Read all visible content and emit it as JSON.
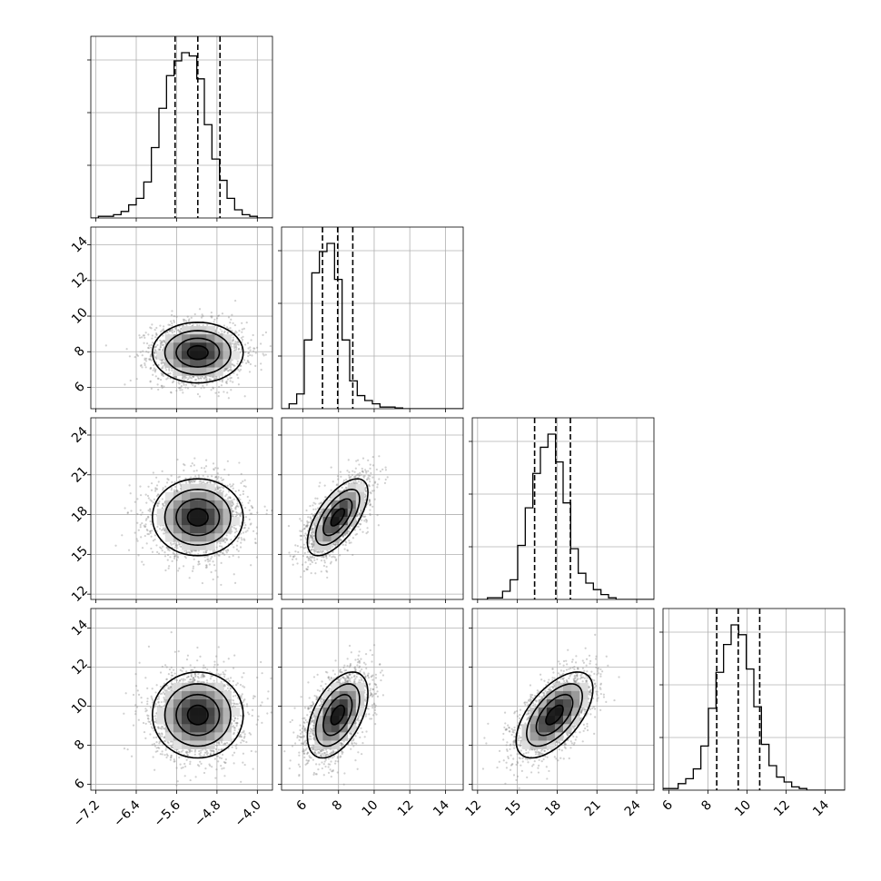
{
  "chart_data": {
    "type": "corner",
    "grid": true,
    "parameters": [
      {
        "range": [
          -7.3,
          -3.7
        ],
        "ticks": [
          -7.2,
          -6.4,
          -5.6,
          -4.8,
          -4.0
        ],
        "tick_labels": [
          "−7.2",
          "−6.4",
          "−5.6",
          "−4.8",
          "−4.0"
        ],
        "quantiles": [
          -5.63,
          -5.18,
          -4.74
        ],
        "center": -5.18,
        "sd": 0.45
      },
      {
        "range": [
          4.8,
          15.0
        ],
        "ticks": [
          6,
          8,
          10,
          12,
          14
        ],
        "tick_labels": [
          "6",
          "8",
          "10",
          "12",
          "14"
        ],
        "quantiles": [
          7.1,
          7.95,
          8.8
        ],
        "center": 7.95,
        "sd": 0.85
      },
      {
        "range": [
          11.6,
          25.3
        ],
        "ticks": [
          12,
          15,
          18,
          21,
          24
        ],
        "tick_labels": [
          "12",
          "15",
          "18",
          "21",
          "24"
        ],
        "quantiles": [
          16.3,
          17.9,
          19.0
        ],
        "center": 17.8,
        "sd": 1.45
      },
      {
        "range": [
          5.7,
          15.0
        ],
        "ticks": [
          6,
          8,
          10,
          12,
          14
        ],
        "tick_labels": [
          "6",
          "8",
          "10",
          "12",
          "14"
        ],
        "quantiles": [
          8.45,
          9.55,
          10.65
        ],
        "center": 9.55,
        "sd": 1.1
      }
    ],
    "correlations": [
      [
        1,
        0,
        0,
        0
      ],
      [
        0,
        1,
        0.65,
        0.5
      ],
      [
        0,
        0.65,
        1,
        0.6
      ],
      [
        0,
        0.5,
        0.6,
        1
      ]
    ],
    "histograms": [
      [
        0,
        1,
        1,
        2,
        4,
        8,
        12,
        22,
        43,
        67,
        87,
        96,
        101,
        99,
        85,
        57,
        36,
        23,
        12,
        5,
        2,
        1,
        0,
        0
      ],
      [
        0,
        3,
        9,
        42,
        83,
        96,
        101,
        79,
        42,
        17,
        8,
        5,
        3,
        1,
        1,
        0.5,
        0,
        0,
        0,
        0,
        0,
        0,
        0,
        0
      ],
      [
        0,
        0,
        1,
        1,
        5,
        12,
        33,
        56,
        77,
        93,
        101,
        84,
        59,
        31,
        16,
        10,
        6,
        3,
        1,
        0,
        0,
        0,
        0,
        0
      ],
      [
        1,
        1,
        4,
        7,
        13,
        27,
        50,
        72,
        89,
        101,
        95,
        74,
        51,
        28,
        15,
        8,
        5,
        2,
        1,
        0,
        0,
        0,
        0,
        0
      ]
    ]
  }
}
